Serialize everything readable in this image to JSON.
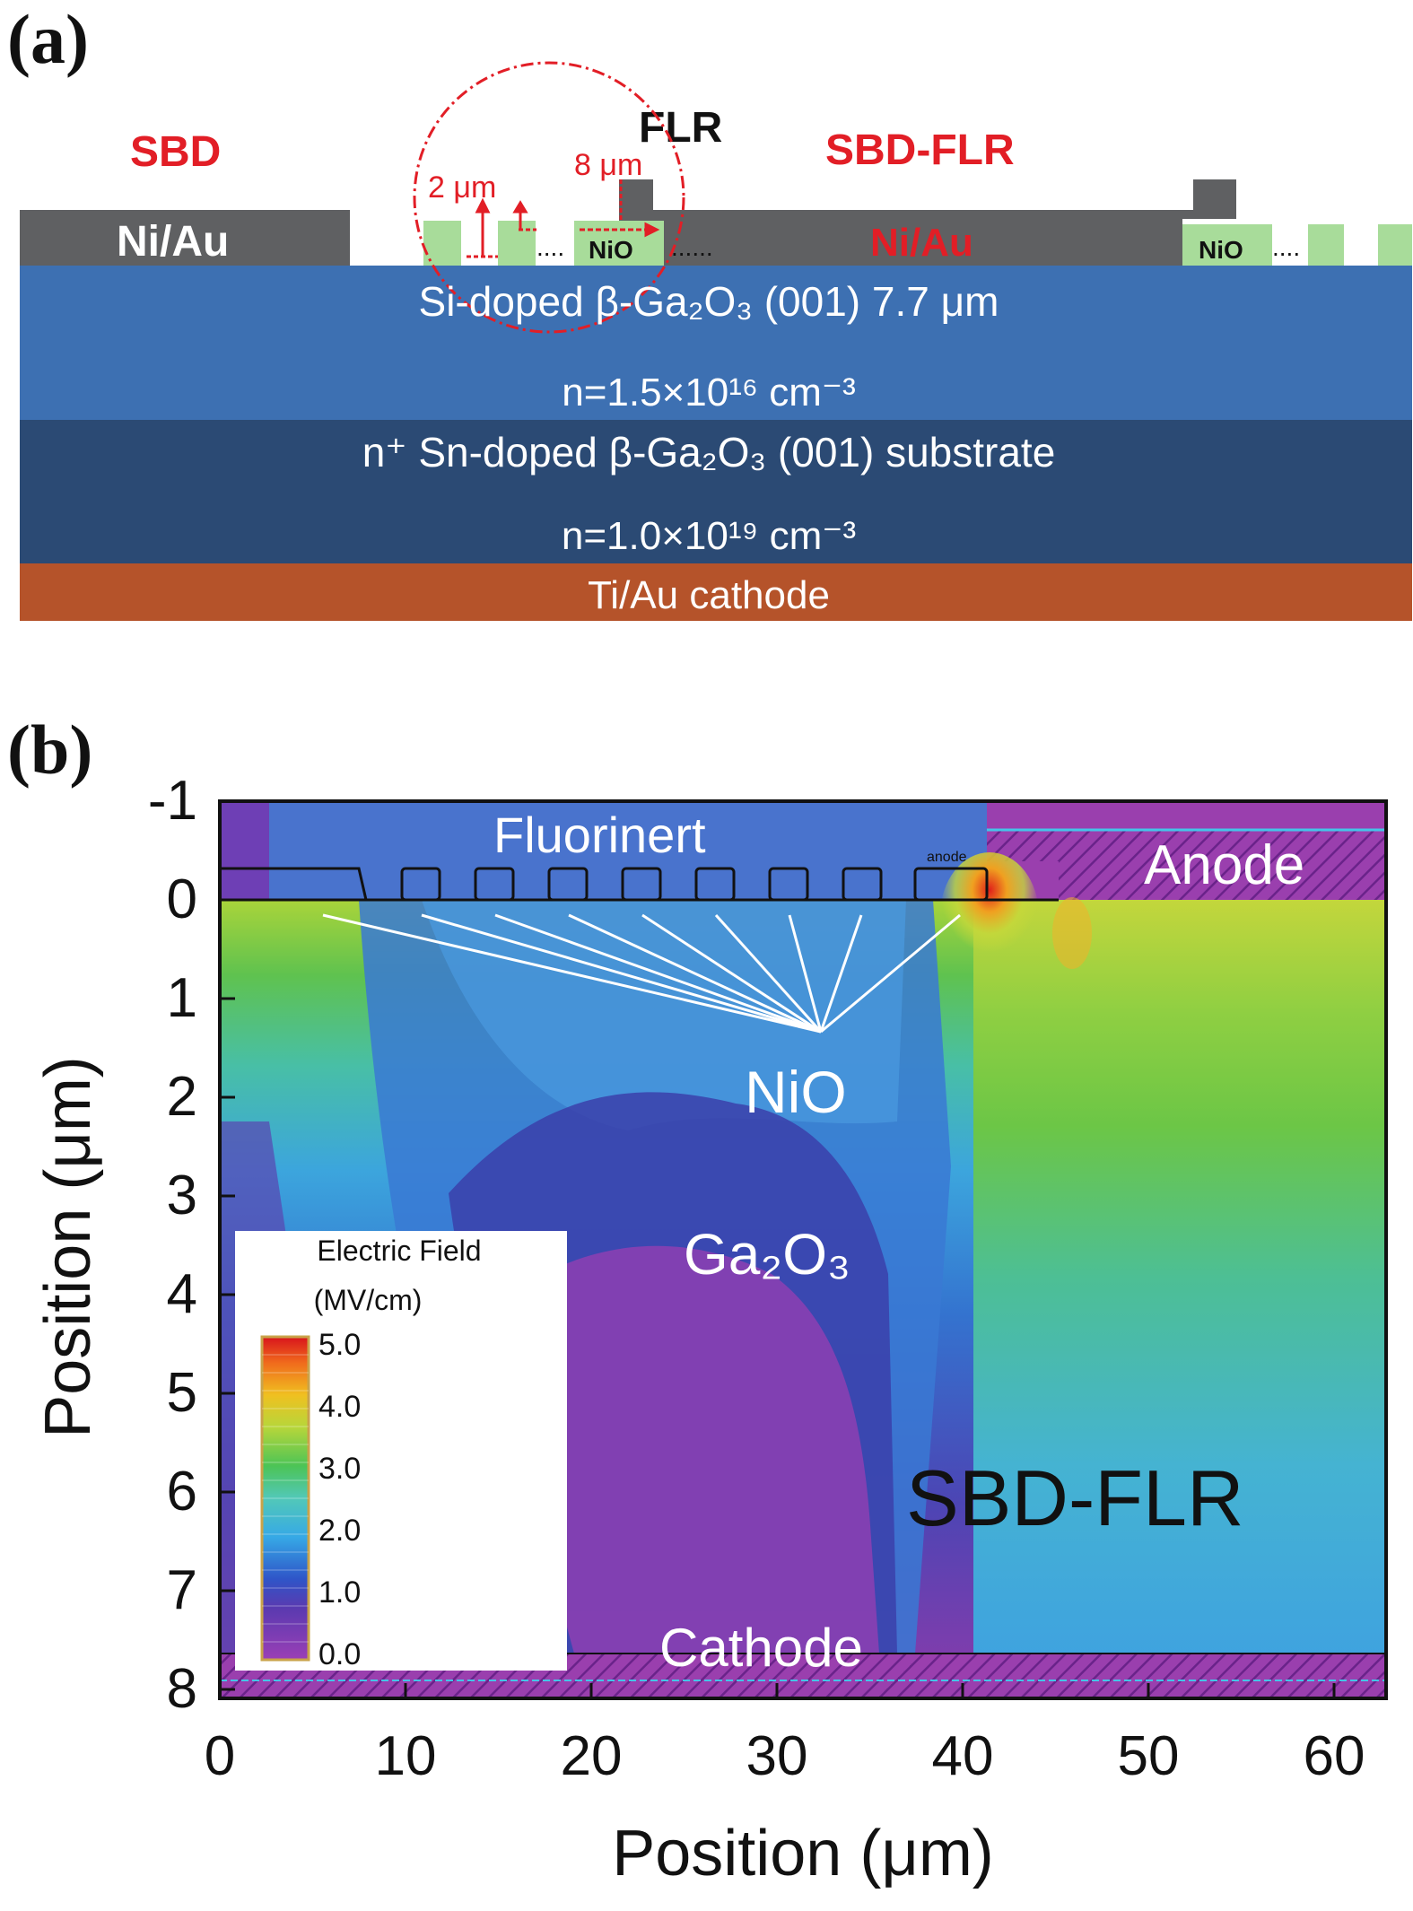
{
  "panel_a": {
    "label": "(a)",
    "label_sbd": "SBD",
    "label_flr": "FLR",
    "label_sbd_flr": "SBD-FLR",
    "contact_left": "Ni/Au",
    "contact_right": "Ni/Au",
    "ring_label": "NiO",
    "ring_label_right": "NiO",
    "dots": "......",
    "dim_width": "2 μm",
    "dim_spacing": "8 μm",
    "epi_line1": "Si-doped β-Ga₂O₃ (001)  7.7 μm",
    "epi_line2": "n=1.5×10¹⁶ cm⁻³",
    "sub_line1": "n⁺ Sn-doped β-Ga₂O₃ (001) substrate",
    "sub_line2": "n=1.0×10¹⁹ cm⁻³",
    "cathode": "Ti/Au cathode",
    "colors": {
      "metal": "#5f6062",
      "nio": "#a8dc9a",
      "epi": "#3c6fb1",
      "substrate": "#2b4a73",
      "cathode": "#b5532a",
      "red_label": "#e21e26"
    }
  },
  "panel_b": {
    "label": "(b)",
    "region_fluorinert": "Fluorinert",
    "region_anode": "Anode",
    "region_nio": "NiO",
    "region_ga2o3": "Ga₂O₃",
    "region_cathode": "Cathode",
    "device_name": "SBD-FLR",
    "anode_small_label": "anode",
    "x_axis_label": "Position (μm)",
    "y_axis_label": "Position (μm)",
    "x_ticks": [
      "0",
      "10",
      "20",
      "30",
      "40",
      "50",
      "60"
    ],
    "y_ticks": [
      "-1",
      "0",
      "1",
      "2",
      "3",
      "4",
      "5",
      "6",
      "7",
      "8"
    ],
    "legend": {
      "title_line1": "Electric Field",
      "title_line2": "(MV/cm)",
      "ticks": [
        "5.0",
        "4.0",
        "3.0",
        "2.0",
        "1.0",
        "0.0"
      ]
    }
  },
  "chart_data": {
    "type": "heatmap",
    "xlabel": "Position (μm)",
    "ylabel": "Position (μm)",
    "xlim": [
      0,
      63
    ],
    "ylim": [
      8,
      -1
    ],
    "x_ticks": [
      0,
      10,
      20,
      30,
      40,
      50,
      60
    ],
    "y_ticks": [
      -1,
      0,
      1,
      2,
      3,
      4,
      5,
      6,
      7,
      8
    ],
    "colorbar": {
      "label": "Electric Field (MV/cm)",
      "range": [
        0.0,
        5.0
      ],
      "ticks": [
        5.0,
        4.0,
        3.0,
        2.0,
        1.0,
        0.0
      ]
    },
    "annotations": [
      "Fluorinert",
      "Anode",
      "NiO",
      "Ga₂O₃",
      "Cathode",
      "SBD-FLR"
    ],
    "ring_count": 9,
    "peak_field_location_um": [
      40.5,
      0.1
    ]
  }
}
